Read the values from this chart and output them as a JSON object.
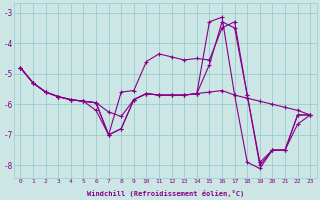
{
  "xlabel": "Windchill (Refroidissement éolien,°C)",
  "bg_color": "#cce5e5",
  "grid_color": "#99cccc",
  "line_color": "#880088",
  "hours": [
    0,
    1,
    2,
    3,
    4,
    5,
    6,
    7,
    8,
    9,
    10,
    11,
    12,
    13,
    14,
    15,
    16,
    17,
    18,
    19,
    20,
    21,
    22,
    23
  ],
  "series1": [
    -4.8,
    -5.3,
    -5.6,
    -5.75,
    -5.85,
    -5.9,
    -5.95,
    -7.0,
    -6.8,
    -5.85,
    -5.65,
    -5.7,
    -5.7,
    -5.7,
    -5.65,
    -3.3,
    -3.15,
    -5.7,
    -7.9,
    -8.1,
    -7.5,
    -7.5,
    -6.35,
    -6.35
  ],
  "series2": [
    -4.8,
    -5.3,
    -5.6,
    -5.75,
    -5.85,
    -5.9,
    -5.95,
    -7.0,
    -6.8,
    -5.85,
    -5.65,
    -5.7,
    -5.7,
    -5.7,
    -5.65,
    -4.7,
    -3.3,
    -3.5,
    -5.7,
    -7.9,
    -7.5,
    -7.5,
    -6.35,
    -6.35
  ],
  "series3": [
    -4.8,
    -5.3,
    -5.6,
    -5.75,
    -5.85,
    -5.9,
    -5.95,
    -6.25,
    -6.4,
    -5.85,
    -5.65,
    -5.7,
    -5.7,
    -5.7,
    -5.65,
    -5.6,
    -5.55,
    -5.7,
    -5.8,
    -5.9,
    -6.0,
    -6.1,
    -6.2,
    -6.35
  ],
  "series4": [
    -4.8,
    -5.3,
    -5.6,
    -5.75,
    -5.85,
    -5.9,
    -6.2,
    -7.0,
    -5.6,
    -5.55,
    -4.6,
    -4.35,
    -4.45,
    -4.55,
    -4.5,
    -4.55,
    -3.5,
    -3.3,
    -5.7,
    -8.0,
    -7.5,
    -7.5,
    -6.65,
    -6.35
  ],
  "ylim": [
    -8.4,
    -2.7
  ],
  "yticks": [
    -8,
    -7,
    -6,
    -5,
    -4,
    -3
  ]
}
